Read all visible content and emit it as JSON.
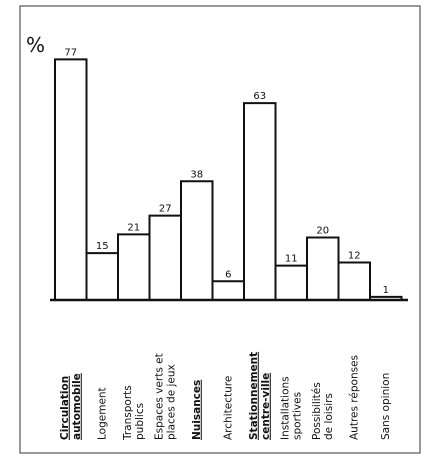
{
  "chart_data": {
    "type": "bar",
    "ylabel": "%",
    "ylim": [
      0,
      80
    ],
    "grid": false,
    "categories": [
      {
        "lines": [
          "Circulation",
          "automobile"
        ],
        "underlined": true
      },
      {
        "lines": [
          "Logement"
        ],
        "underlined": false
      },
      {
        "lines": [
          "Transports",
          "publics"
        ],
        "underlined": false
      },
      {
        "lines": [
          "Espaces verts et",
          "places de jeux"
        ],
        "underlined": false
      },
      {
        "lines": [
          "Nuisances"
        ],
        "underlined": true
      },
      {
        "lines": [
          "Architecture"
        ],
        "underlined": false
      },
      {
        "lines": [
          "Stationnement",
          "centre-ville"
        ],
        "underlined": true
      },
      {
        "lines": [
          "Installations",
          "sportives"
        ],
        "underlined": false
      },
      {
        "lines": [
          "Possibilités",
          "de loisirs"
        ],
        "underlined": false
      },
      {
        "lines": [
          "Autres réponses"
        ],
        "underlined": false
      },
      {
        "lines": [
          "Sans opinion"
        ],
        "underlined": false
      }
    ],
    "values": [
      77,
      15,
      21,
      27,
      38,
      6,
      63,
      11,
      20,
      12,
      1
    ],
    "value_labels": [
      "77",
      "15",
      "21",
      "27",
      "38",
      "6",
      "63",
      "11",
      "20",
      "12",
      "1"
    ]
  }
}
